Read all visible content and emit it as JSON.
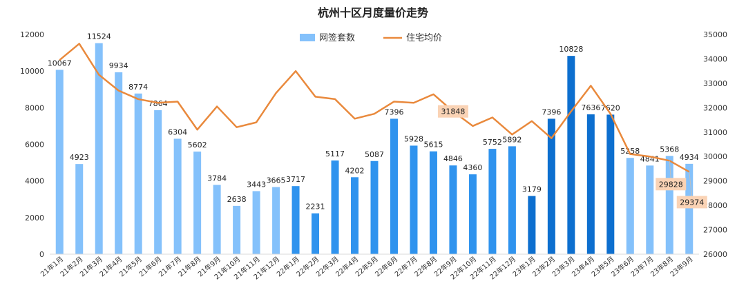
{
  "chart_data": {
    "type": "bar+line",
    "title": "杭州十区月度量价走势",
    "categories": [
      "21年1月",
      "21年2月",
      "21年3月",
      "21年4月",
      "21年5月",
      "21年6月",
      "21年7月",
      "21年8月",
      "21年9月",
      "21年10月",
      "21年11月",
      "21年12月",
      "22年1月",
      "22年2月",
      "22年3月",
      "22年4月",
      "22年5月",
      "22年6月",
      "22年7月",
      "22年8月",
      "22年9月",
      "22年10月",
      "22年11月",
      "22年12月",
      "23年1月",
      "23年2月",
      "23年3月",
      "23年4月",
      "23年5月",
      "23年6月",
      "23年7月",
      "23年8月",
      "23年9月"
    ],
    "bar_series": {
      "name": "网签套数",
      "values": [
        10067,
        4923,
        11524,
        9934,
        8774,
        7864,
        6304,
        5602,
        3784,
        2638,
        3443,
        3665,
        3717,
        2231,
        5117,
        4202,
        5087,
        7396,
        5928,
        5615,
        4846,
        4360,
        5752,
        5892,
        3179,
        7396,
        10828,
        7636,
        7620,
        5258,
        4841,
        5368,
        4934
      ],
      "colors": [
        "#84c1fb",
        "#84c1fb",
        "#84c1fb",
        "#84c1fb",
        "#84c1fb",
        "#84c1fb",
        "#84c1fb",
        "#84c1fb",
        "#84c1fb",
        "#84c1fb",
        "#84c1fb",
        "#84c1fb",
        "#2f93ee",
        "#2f93ee",
        "#2f93ee",
        "#2f93ee",
        "#2f93ee",
        "#2f93ee",
        "#2f93ee",
        "#2f93ee",
        "#2f93ee",
        "#2f93ee",
        "#2f93ee",
        "#2f93ee",
        "#0d6fcf",
        "#0d6fcf",
        "#0d6fcf",
        "#0d6fcf",
        "#0d6fcf",
        "#84c1fb",
        "#84c1fb",
        "#84c1fb",
        "#84c1fb"
      ]
    },
    "line_series": {
      "name": "住宅均价",
      "values": [
        33950,
        34620,
        33350,
        32700,
        32350,
        32200,
        32250,
        31100,
        32050,
        31200,
        31400,
        32600,
        33500,
        32450,
        32350,
        31550,
        31750,
        32250,
        32200,
        32550,
        31848,
        31250,
        31600,
        30900,
        31450,
        30750,
        31850,
        32900,
        31750,
        30100,
        30000,
        29828,
        29374
      ],
      "color": "#e9893c"
    },
    "y_left": {
      "min": 0,
      "max": 12000,
      "ticks": [
        "0",
        "2000",
        "4000",
        "6000",
        "8000",
        "10000",
        "12000"
      ]
    },
    "y_right": {
      "min": 26000,
      "max": 35000,
      "ticks": [
        "26000",
        "27000",
        "28000",
        "29000",
        "30000",
        "31000",
        "32000",
        "33000",
        "34000",
        "35000"
      ]
    },
    "highlighted_prices": [
      {
        "index": 20,
        "label": "31848"
      },
      {
        "index": 31,
        "label": "29828"
      },
      {
        "index": 32,
        "label": "29374"
      }
    ],
    "callout_color": "#fad3b5",
    "legend_position": "top-center"
  }
}
